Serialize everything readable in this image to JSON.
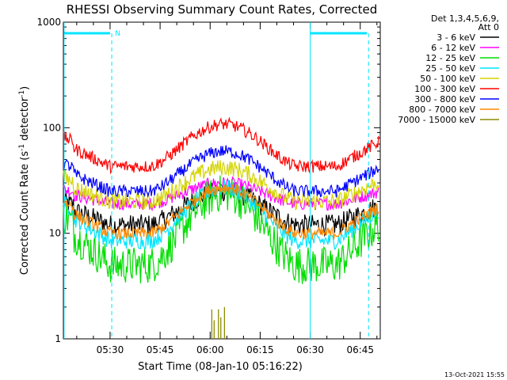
{
  "chart_data": {
    "type": "line",
    "title": "RHESSI Observing Summary Count Rates, Corrected",
    "xlabel": "Start Time (08-Jan-10 05:16:22)",
    "ylabel_main": "Corrected Count Rate (s",
    "ylabel_sup1": "-1",
    "ylabel_mid": " detector",
    "ylabel_sup2": "-1",
    "ylabel_end": ")",
    "ylog": true,
    "ylim": [
      1,
      1000
    ],
    "xlim_minutes": [
      0,
      95
    ],
    "xticks": [
      {
        "t": 14,
        "label": "05:30"
      },
      {
        "t": 29,
        "label": "05:45"
      },
      {
        "t": 44,
        "label": "06:00"
      },
      {
        "t": 59,
        "label": "06:15"
      },
      {
        "t": 74,
        "label": "06:30"
      },
      {
        "t": 89,
        "label": "06:45"
      }
    ],
    "yticks": [
      {
        "v": 1000,
        "label": "1000"
      },
      {
        "v": 100,
        "label": "100"
      },
      {
        "v": 10,
        "label": "10"
      },
      {
        "v": 1,
        "label": "1"
      }
    ],
    "legend_header": [
      "Det 1,3,4,5,6,9,",
      "Att 0"
    ],
    "legend_position": "right",
    "series": [
      {
        "name": "3 - 6 keV",
        "color": "#000000",
        "min": 12,
        "max": 25,
        "noise": 0.1
      },
      {
        "name": "6 - 12 keV",
        "color": "#ff00ff",
        "min": 19,
        "max": 30,
        "noise": 0.06
      },
      {
        "name": "12 - 25 keV",
        "color": "#00dd00",
        "min": 5,
        "max": 24,
        "noise": 0.18
      },
      {
        "name": "25 - 50 keV",
        "color": "#00e5ff",
        "min": 8.5,
        "max": 27,
        "noise": 0.08
      },
      {
        "name": "50 - 100 keV",
        "color": "#d4d400",
        "min": 20,
        "max": 42,
        "noise": 0.08
      },
      {
        "name": "100 - 300 keV",
        "color": "#ff0000",
        "min": 43,
        "max": 108,
        "noise": 0.06
      },
      {
        "name": "300 - 800 keV",
        "color": "#0000ff",
        "min": 25,
        "max": 60,
        "noise": 0.06
      },
      {
        "name": "800 - 7000 keV",
        "color": "#ff8800",
        "min": 10,
        "max": 27,
        "noise": 0.06
      },
      {
        "name": "7000 - 15000 keV",
        "color": "#8b8b00",
        "min": 1,
        "max": 2,
        "noise": 0.0
      }
    ],
    "annotations": {
      "flag_label": "N",
      "flag_color": "#00e5ff"
    },
    "footer_date": "13-Oct-2021 15:55"
  }
}
